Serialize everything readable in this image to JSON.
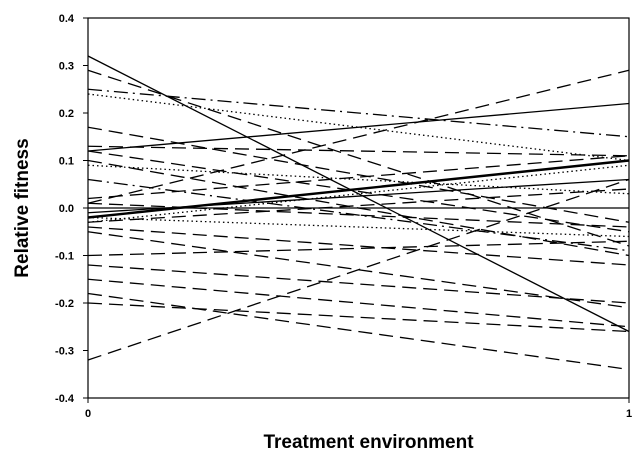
{
  "chart_data": {
    "type": "line",
    "title": "",
    "xlabel": "Treatment environment",
    "ylabel": "Relative fitness",
    "xlim": [
      0,
      1
    ],
    "ylim": [
      -0.4,
      0.4
    ],
    "x_ticks": [
      "0",
      "1"
    ],
    "x_tick_values": [
      0,
      1
    ],
    "y_ticks": [
      "0.4",
      "0.3",
      "0.2",
      "0.1",
      "0.0",
      "-0.1",
      "-0.2",
      "-0.3",
      "-0.4"
    ],
    "y_tick_values": [
      0.4,
      0.3,
      0.2,
      0.1,
      0.0,
      -0.1,
      -0.2,
      -0.3,
      -0.4
    ],
    "grid": false,
    "legend": "none",
    "line_color": "#000000",
    "x": [
      0,
      1
    ],
    "series": [
      {
        "values": [
          0.32,
          -0.26
        ],
        "style": "solid"
      },
      {
        "values": [
          -0.32,
          0.06
        ],
        "style": "dash"
      },
      {
        "values": [
          0.12,
          0.22
        ],
        "style": "solid"
      },
      {
        "values": [
          0.01,
          0.29
        ],
        "style": "dash"
      },
      {
        "values": [
          0.29,
          -0.08
        ],
        "style": "dash"
      },
      {
        "values": [
          0.25,
          0.15
        ],
        "style": "dashdot"
      },
      {
        "values": [
          0.24,
          0.1
        ],
        "style": "dot"
      },
      {
        "values": [
          0.17,
          -0.03
        ],
        "style": "dash"
      },
      {
        "values": [
          0.13,
          0.11
        ],
        "style": "dash"
      },
      {
        "values": [
          0.12,
          -0.05
        ],
        "style": "dash"
      },
      {
        "values": [
          0.1,
          -0.1
        ],
        "style": "dash"
      },
      {
        "values": [
          0.09,
          0.03
        ],
        "style": "dot"
      },
      {
        "values": [
          0.06,
          -0.09
        ],
        "style": "dashdot"
      },
      {
        "values": [
          -0.02,
          0.1
        ],
        "style": "solid-thick"
      },
      {
        "values": [
          -0.01,
          0.06
        ],
        "style": "solid"
      },
      {
        "values": [
          0.02,
          0.11
        ],
        "style": "dash"
      },
      {
        "values": [
          0.0,
          0.0
        ],
        "style": "solid"
      },
      {
        "values": [
          0.01,
          -0.04
        ],
        "style": "dash"
      },
      {
        "values": [
          -0.02,
          -0.06
        ],
        "style": "dot"
      },
      {
        "values": [
          -0.03,
          0.04
        ],
        "style": "dash"
      },
      {
        "values": [
          -0.04,
          -0.12
        ],
        "style": "dash"
      },
      {
        "values": [
          -0.05,
          -0.21
        ],
        "style": "dash"
      },
      {
        "values": [
          -0.1,
          -0.07
        ],
        "style": "dash"
      },
      {
        "values": [
          -0.12,
          -0.2
        ],
        "style": "dash"
      },
      {
        "values": [
          -0.15,
          -0.25
        ],
        "style": "dash"
      },
      {
        "values": [
          -0.18,
          -0.34
        ],
        "style": "dash"
      },
      {
        "values": [
          -0.2,
          -0.26
        ],
        "style": "dash"
      },
      {
        "values": [
          -0.03,
          0.09
        ],
        "style": "dot"
      }
    ]
  }
}
